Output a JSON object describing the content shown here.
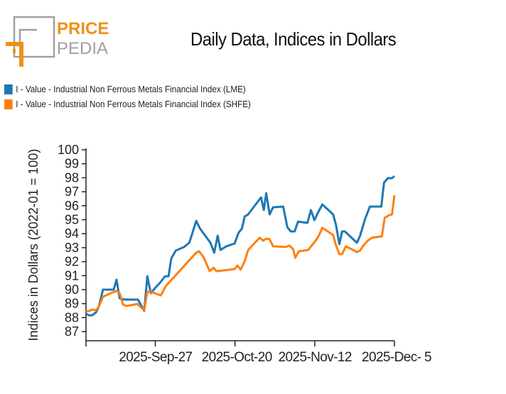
{
  "logo": {
    "line1": "PRICE",
    "line2": "PEDIA"
  },
  "colors": {
    "lme": "#1f77b4",
    "shfe": "#ff7f0e",
    "logo_orange": "#f0901a",
    "logo_gray": "#a0a0a0"
  },
  "chart_data": {
    "type": "line",
    "title": "Daily Data, Indices in Dollars",
    "xlabel": "",
    "ylabel": "Indices in Dollars (2022-01 = 100)",
    "x_unit": "days since 2025-Sep-07",
    "xlim": [
      0,
      89
    ],
    "ylim": [
      86.4,
      100
    ],
    "yticks": [
      87,
      88,
      89,
      90,
      91,
      92,
      93,
      94,
      95,
      96,
      97,
      98,
      99,
      100
    ],
    "xticks": [
      {
        "x": 20,
        "label": "2025-Sep-27"
      },
      {
        "x": 43,
        "label": "2025-Oct-20"
      },
      {
        "x": 66,
        "label": "2025-Nov-12"
      },
      {
        "x": 89,
        "label": "2025-Dec- 5"
      }
    ],
    "legend_position": "top-left",
    "grid": false,
    "series": [
      {
        "name": "I - Value - Industrial Non Ferrous Metals Financial Index (LME)",
        "color": "#1f77b4",
        "points": [
          [
            0,
            88.27
          ],
          [
            0.8,
            88.17
          ],
          [
            1.8,
            88.17
          ],
          [
            2.9,
            88.38
          ],
          [
            3.7,
            88.78
          ],
          [
            4.9,
            90.0
          ],
          [
            7.2,
            90.0
          ],
          [
            8.0,
            90.0
          ],
          [
            8.8,
            90.71
          ],
          [
            9.7,
            89.39
          ],
          [
            10.1,
            89.34
          ],
          [
            11.3,
            89.29
          ],
          [
            12.5,
            89.29
          ],
          [
            15.0,
            89.29
          ],
          [
            16.8,
            88.48
          ],
          [
            17.7,
            90.96
          ],
          [
            18.7,
            89.75
          ],
          [
            19.9,
            90.1
          ],
          [
            21.4,
            90.51
          ],
          [
            22.8,
            90.96
          ],
          [
            23.8,
            90.96
          ],
          [
            24.6,
            92.23
          ],
          [
            25.9,
            92.79
          ],
          [
            28.3,
            93.05
          ],
          [
            29.8,
            93.35
          ],
          [
            30.6,
            93.96
          ],
          [
            31.8,
            94.92
          ],
          [
            32.9,
            94.37
          ],
          [
            34.7,
            93.76
          ],
          [
            35.9,
            93.35
          ],
          [
            37.0,
            92.64
          ],
          [
            38.0,
            93.86
          ],
          [
            38.8,
            92.84
          ],
          [
            40.5,
            93.1
          ],
          [
            42.9,
            93.3
          ],
          [
            44.0,
            94.06
          ],
          [
            45.0,
            94.37
          ],
          [
            45.8,
            95.23
          ],
          [
            46.8,
            95.38
          ],
          [
            50.5,
            96.6
          ],
          [
            51.3,
            95.69
          ],
          [
            52.0,
            96.9
          ],
          [
            53.0,
            95.38
          ],
          [
            54.0,
            95.89
          ],
          [
            56.9,
            95.94
          ],
          [
            58.1,
            94.47
          ],
          [
            59.1,
            94.16
          ],
          [
            60.2,
            94.16
          ],
          [
            61.2,
            94.87
          ],
          [
            63.9,
            94.77
          ],
          [
            64.9,
            95.69
          ],
          [
            65.9,
            94.97
          ],
          [
            66.9,
            95.48
          ],
          [
            68.2,
            96.09
          ],
          [
            71.3,
            95.38
          ],
          [
            72.1,
            94.67
          ],
          [
            73.1,
            93.25
          ],
          [
            73.9,
            94.16
          ],
          [
            74.7,
            94.16
          ],
          [
            78.2,
            93.35
          ],
          [
            79.1,
            93.86
          ],
          [
            80.5,
            95.03
          ],
          [
            81.9,
            95.94
          ],
          [
            85.2,
            95.94
          ],
          [
            86.0,
            97.66
          ],
          [
            87.1,
            97.97
          ],
          [
            88.3,
            97.97
          ],
          [
            89.0,
            98.12
          ]
        ]
      },
      {
        "name": "I - Value - Industrial Non Ferrous Metals Financial Index (SHFE)",
        "color": "#ff7f0e",
        "points": [
          [
            0,
            88.43
          ],
          [
            1.0,
            88.48
          ],
          [
            1.8,
            88.58
          ],
          [
            2.9,
            88.53
          ],
          [
            3.7,
            88.78
          ],
          [
            4.9,
            89.49
          ],
          [
            7.2,
            89.75
          ],
          [
            8.8,
            89.9
          ],
          [
            9.7,
            89.75
          ],
          [
            10.7,
            88.93
          ],
          [
            11.7,
            88.83
          ],
          [
            14.8,
            88.98
          ],
          [
            16.8,
            88.53
          ],
          [
            17.7,
            89.85
          ],
          [
            18.7,
            89.85
          ],
          [
            21.6,
            89.59
          ],
          [
            23.0,
            90.25
          ],
          [
            31.8,
            92.64
          ],
          [
            32.6,
            92.74
          ],
          [
            33.9,
            92.34
          ],
          [
            35.7,
            91.32
          ],
          [
            36.8,
            91.57
          ],
          [
            37.6,
            91.32
          ],
          [
            39.6,
            91.37
          ],
          [
            42.9,
            91.47
          ],
          [
            43.7,
            91.73
          ],
          [
            44.6,
            91.42
          ],
          [
            45.8,
            92.03
          ],
          [
            46.8,
            92.84
          ],
          [
            50.1,
            93.71
          ],
          [
            51.1,
            93.5
          ],
          [
            52.0,
            93.65
          ],
          [
            53.0,
            93.6
          ],
          [
            54.0,
            93.1
          ],
          [
            57.7,
            93.05
          ],
          [
            58.7,
            93.15
          ],
          [
            59.8,
            92.89
          ],
          [
            60.4,
            92.28
          ],
          [
            61.4,
            92.74
          ],
          [
            64.1,
            92.84
          ],
          [
            66.1,
            93.45
          ],
          [
            67.1,
            93.81
          ],
          [
            68.2,
            94.42
          ],
          [
            71.3,
            93.91
          ],
          [
            72.1,
            93.2
          ],
          [
            73.1,
            92.54
          ],
          [
            73.9,
            92.54
          ],
          [
            75.0,
            93.1
          ],
          [
            78.2,
            92.69
          ],
          [
            79.1,
            92.79
          ],
          [
            79.9,
            93.1
          ],
          [
            81.3,
            93.5
          ],
          [
            82.5,
            93.71
          ],
          [
            85.4,
            93.81
          ],
          [
            86.2,
            95.13
          ],
          [
            87.5,
            95.33
          ],
          [
            88.3,
            95.38
          ],
          [
            89.0,
            96.75
          ]
        ]
      }
    ]
  }
}
